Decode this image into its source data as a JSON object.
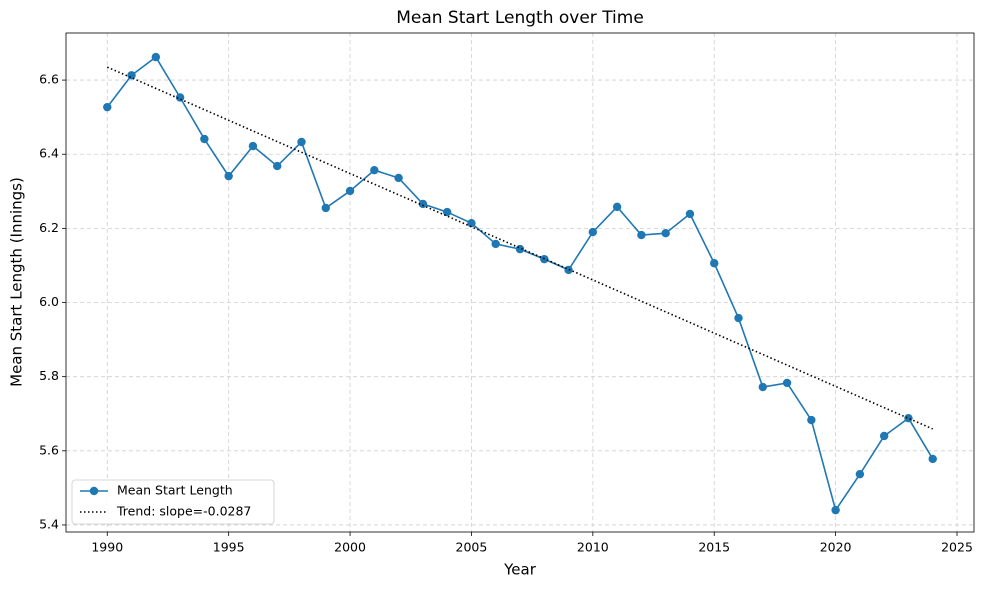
{
  "chart_data": {
    "type": "line",
    "title": "Mean Start Length over Time",
    "x_label": "Year",
    "y_label": "Mean Start Length (Innings)",
    "xlim": [
      1988.3,
      2025.7
    ],
    "ylim": [
      5.381,
      6.727
    ],
    "xticks": [
      1990,
      1995,
      2000,
      2005,
      2010,
      2015,
      2020,
      2025
    ],
    "yticks": [
      5.4,
      5.6,
      5.8,
      {
        "value": 6,
        "label": "6.0"
      },
      6.2,
      6.4,
      6.6
    ],
    "grid": true,
    "legend": "lower left",
    "series": [
      {
        "name": "Mean Start Length",
        "color": "#1f77b4",
        "marker": "o",
        "linestyle": "solid",
        "x": [
          1990,
          1991,
          1992,
          1993,
          1994,
          1995,
          1996,
          1997,
          1998,
          1999,
          2000,
          2001,
          2002,
          2003,
          2004,
          2005,
          2006,
          2007,
          2008,
          2009,
          2010,
          2011,
          2012,
          2013,
          2014,
          2015,
          2016,
          2017,
          2018,
          2019,
          2020,
          2021,
          2022,
          2023,
          2024
        ],
        "values": [
          6.527,
          6.613,
          6.662,
          6.553,
          6.441,
          6.341,
          6.422,
          6.368,
          6.433,
          6.255,
          6.301,
          6.357,
          6.336,
          6.266,
          6.244,
          6.214,
          6.158,
          6.144,
          6.117,
          6.088,
          6.19,
          6.258,
          6.182,
          6.187,
          6.239,
          6.106,
          5.958,
          5.772,
          5.783,
          5.683,
          5.44,
          5.537,
          5.64,
          5.688,
          5.578
        ]
      },
      {
        "name": "Trend: slope=-0.0287",
        "color": "#000000",
        "linestyle": "dotted",
        "x": [
          1990,
          2024
        ],
        "values": [
          6.635,
          5.659
        ]
      }
    ]
  }
}
